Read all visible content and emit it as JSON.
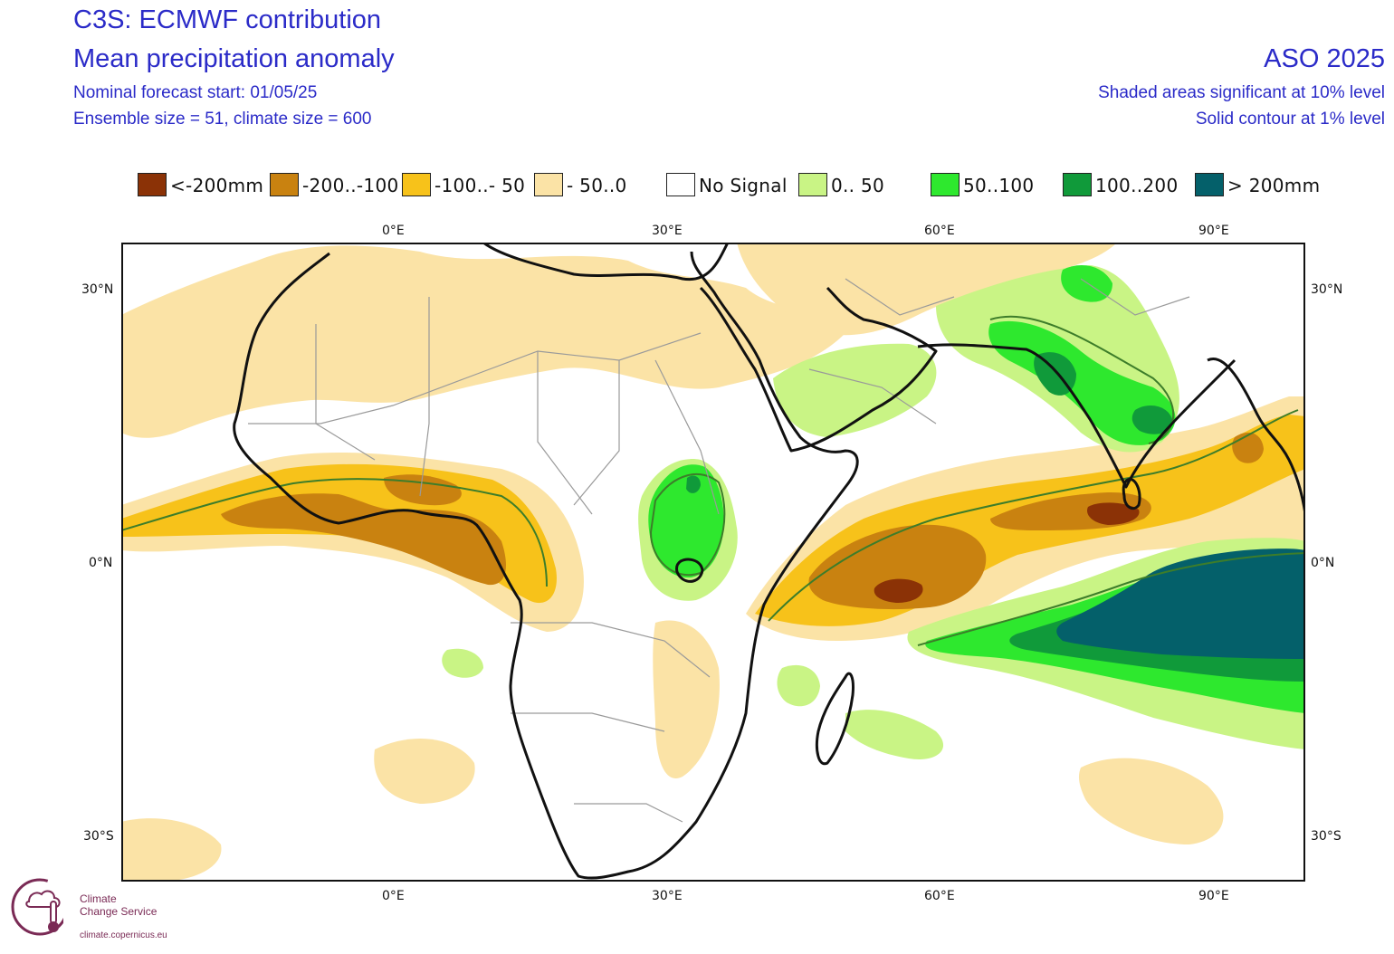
{
  "header": {
    "title": "C3S: ECMWF contribution",
    "subtitle": "Mean precipitation anomaly",
    "forecast_start": "Nominal forecast start: 01/05/25",
    "ensemble": "Ensemble size = 51, climate size = 600",
    "period": "ASO 2025",
    "sig10": "Shaded areas significant at 10% level",
    "sig1": "Solid contour at 1% level"
  },
  "legend": [
    {
      "label": "<-200mm",
      "color": "#8b3206"
    },
    {
      "label": "-200..-100",
      "color": "#c98210"
    },
    {
      "label": "-100..- 50",
      "color": "#f7c21a"
    },
    {
      "label": "- 50..0",
      "color": "#fbe3a6"
    },
    {
      "label": "No Signal",
      "color": "#ffffff"
    },
    {
      "label": "0.. 50",
      "color": "#c9f485"
    },
    {
      "label": "50..100",
      "color": "#2ee82e"
    },
    {
      "label": "100..200",
      "color": "#109a3a"
    },
    {
      "label": "> 200mm",
      "color": "#04606a"
    }
  ],
  "axes": {
    "lon_top": [
      "0°E",
      "30°E",
      "60°E",
      "90°E"
    ],
    "lon_bottom": [
      "0°E",
      "30°E",
      "60°E",
      "90°E"
    ],
    "lat_left": [
      "30°N",
      "0°N",
      "30°S"
    ],
    "lat_right": [
      "30°N",
      "0°N",
      "30°S"
    ],
    "lon_range": [
      -30,
      100
    ],
    "lat_range": [
      -35,
      35
    ]
  },
  "colors": {
    "title": "#2b2bc8",
    "coast": "#111111",
    "border": "#9a9a9a",
    "contour": "#3d7d2a"
  },
  "logo": {
    "line1": "Climate",
    "line2": "Change Service",
    "url": "climate.copernicus.eu",
    "icon": "thermometer-cloud-icon"
  }
}
